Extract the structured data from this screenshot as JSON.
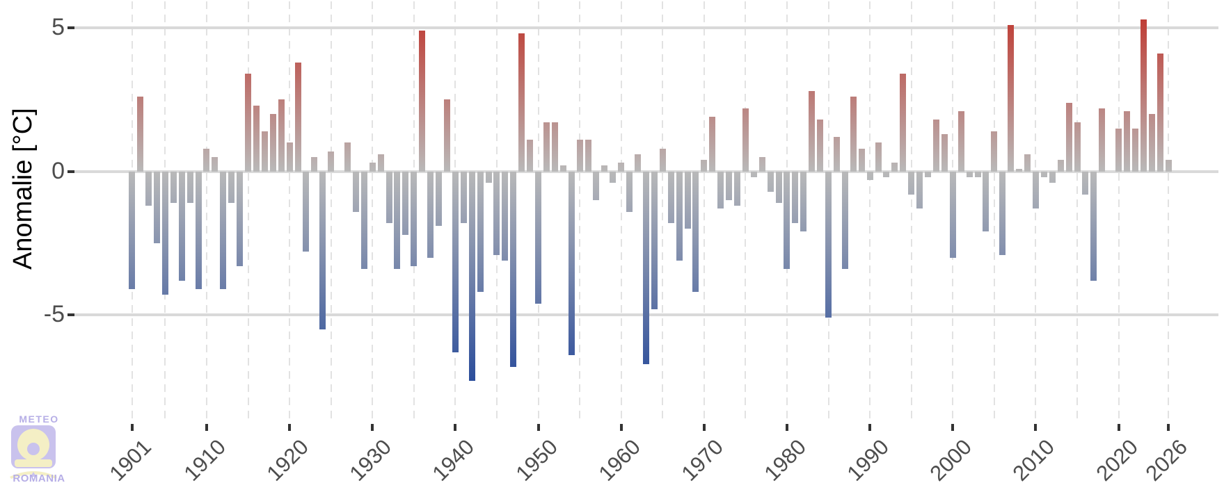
{
  "chart_data": {
    "type": "bar",
    "title": "",
    "xlabel": "",
    "ylabel": "Anomalie [°C]",
    "year_first": 1901,
    "year_last": 2026,
    "values": [
      -4.1,
      2.6,
      -1.2,
      -2.5,
      -4.3,
      -1.1,
      -3.8,
      -1.1,
      -4.1,
      0.8,
      0.5,
      -4.1,
      -1.1,
      -3.3,
      3.4,
      2.3,
      1.4,
      2.0,
      2.5,
      1.0,
      3.8,
      -2.8,
      0.5,
      -5.5,
      0.7,
      0.0,
      1.0,
      -1.4,
      -3.4,
      0.3,
      0.6,
      -1.8,
      -3.4,
      -2.2,
      -3.3,
      4.9,
      -3.0,
      -1.9,
      2.5,
      -6.3,
      -1.8,
      -7.3,
      -4.2,
      -0.4,
      -2.9,
      -3.1,
      -6.8,
      4.8,
      1.1,
      -4.6,
      1.7,
      1.7,
      0.2,
      -6.4,
      1.1,
      1.1,
      -1.0,
      0.2,
      -0.4,
      0.3,
      -1.4,
      0.6,
      -6.7,
      -4.8,
      0.8,
      -1.8,
      -3.1,
      -2.0,
      -4.2,
      0.4,
      1.9,
      -1.3,
      -1.0,
      -1.2,
      2.2,
      -0.2,
      0.5,
      -0.7,
      -1.1,
      -3.4,
      -1.8,
      -2.1,
      2.8,
      1.8,
      -5.1,
      1.2,
      -3.4,
      2.6,
      0.8,
      -0.3,
      1.0,
      -0.2,
      0.3,
      3.4,
      -0.8,
      -1.3,
      -0.2,
      1.8,
      1.3,
      -3.0,
      2.1,
      -0.2,
      -0.2,
      -2.1,
      1.4,
      -2.9,
      5.1,
      0.1,
      0.6,
      -1.3,
      -0.2,
      -0.4,
      0.4,
      2.4,
      1.7,
      -0.8,
      -3.8,
      2.2,
      0.0,
      1.5,
      2.1,
      1.5,
      5.3,
      2.0,
      4.1,
      0.4
    ],
    "y_ticks": [
      5,
      0,
      -5
    ],
    "y_tick_labels": [
      "5",
      "0",
      "-5"
    ],
    "x_tick_years": [
      1901,
      1910,
      1920,
      1930,
      1940,
      1950,
      1960,
      1970,
      1980,
      1990,
      2000,
      2010,
      2020,
      2026
    ],
    "grid_years": [
      1901,
      1905,
      1910,
      1915,
      1920,
      1925,
      1930,
      1935,
      1940,
      1945,
      1950,
      1955,
      1960,
      1965,
      1970,
      1975,
      1980,
      1985,
      1990,
      1995,
      2000,
      2005,
      2010,
      2015,
      2020,
      2026
    ],
    "ylim": [
      -8,
      6
    ],
    "grid": "horizontal solid at ticks, vertical dashed every 5 years",
    "legend": "none",
    "colors": {
      "positive_max": "#bf3e36",
      "negative_max": "#2b4d9b",
      "neutral": "#b9b9b9",
      "grid_major": "#d9d9d9",
      "grid_dashed": "#e2e2e2",
      "tick_mark": "#333333",
      "tick_label": "#4d4d4d",
      "axis_title": "#000000"
    },
    "color_scale": {
      "positive_full_at": 5.3,
      "negative_full_at": 7.3
    }
  },
  "logo": {
    "top_text": "METEO",
    "bottom_text": "ROMANIA",
    "text_color": "#b6aee6",
    "box_color": "#c9c2ed",
    "sun_color": "#f4efc5"
  }
}
